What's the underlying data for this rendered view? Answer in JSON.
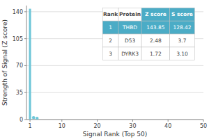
{
  "chart_data": {
    "type": "bar",
    "xlabel": "Signal Rank (Top 50)",
    "ylabel": "Strength of Signal (Z score)",
    "xlim": [
      0,
      50
    ],
    "ylim": [
      0,
      148
    ],
    "xticks": [
      1,
      10,
      20,
      30,
      40,
      50
    ],
    "yticks": [
      0,
      35,
      70,
      105,
      140
    ],
    "grid": true,
    "series": [
      {
        "type": "bar",
        "color": "#6ec6d8",
        "x": [
          1
        ],
        "values": [
          143.85
        ]
      },
      {
        "type": "scatter",
        "color": "#6ec6d8",
        "x": [
          2,
          3
        ],
        "values": [
          2.48,
          1.72
        ]
      }
    ],
    "table": {
      "columns": [
        "Rank",
        "Protein",
        "Z score",
        "S score"
      ],
      "rows": [
        [
          "1",
          "THBD",
          "143.85",
          "128.42"
        ],
        [
          "2",
          "D53",
          "2.48",
          "3.7"
        ],
        [
          "3",
          "DYRK3",
          "1.72",
          "3.10"
        ]
      ]
    }
  }
}
